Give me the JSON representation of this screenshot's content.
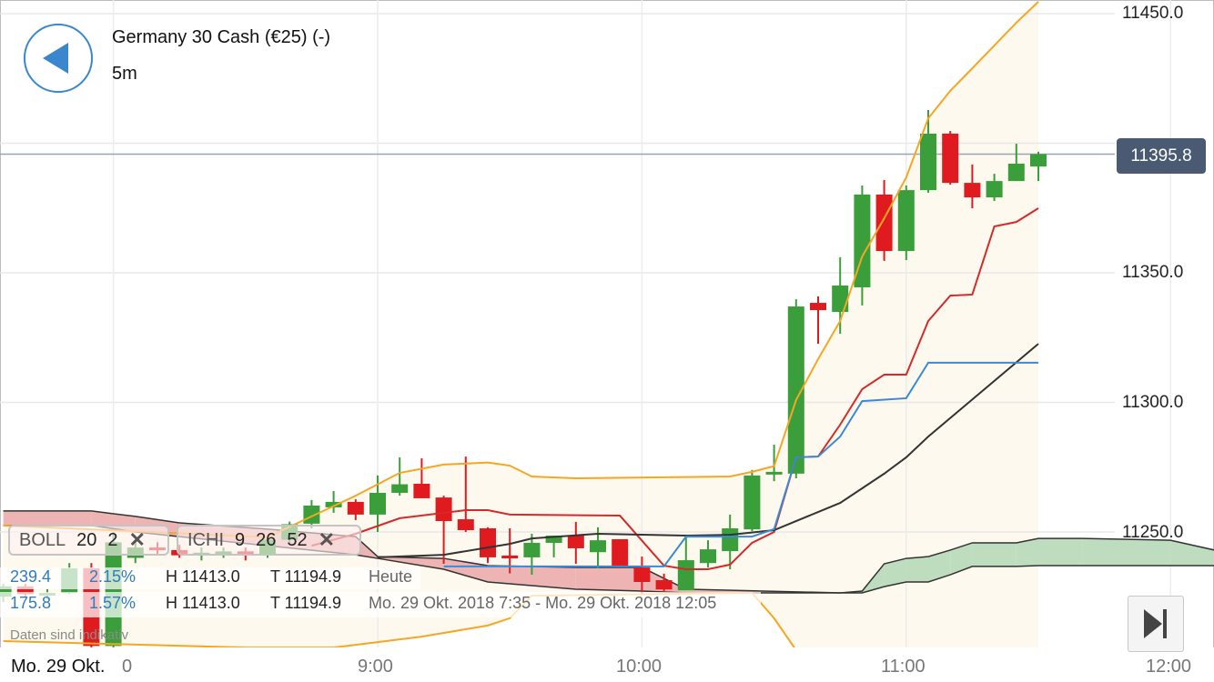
{
  "header": {
    "title": "Germany 30 Cash (€25) (-)",
    "interval": "5m",
    "back_icon": "back-triangle-icon"
  },
  "indicators": [
    {
      "name": "BOLL",
      "params": [
        "20",
        "2"
      ],
      "remove": "✕"
    },
    {
      "name": "ICHI",
      "params": [
        "9",
        "26",
        "52"
      ],
      "remove": "✕"
    }
  ],
  "stats": [
    {
      "change": "239.4",
      "pct": "2.15%",
      "high": "H 11413.0",
      "low": "T 11194.9",
      "period": "Heute"
    },
    {
      "change": "175.8",
      "pct": "1.57%",
      "high": "H 11413.0",
      "low": "T 11194.9",
      "period": "Mo. 29 Okt. 2018 7:35 - Mo. 29 Okt. 2018 12:05"
    }
  ],
  "disclaimer": "Daten sind indikativ",
  "last_price": "11395.8",
  "x_axis": {
    "date_label": "Mo. 29 Okt.",
    "partial_label": "0",
    "ticks": [
      "9:00",
      "10:00",
      "11:00",
      "12:00"
    ]
  },
  "y_axis": {
    "ticks": [
      "11450.0",
      "11350.0",
      "11300.0",
      "11250.0"
    ]
  },
  "colors": {
    "up": "#3a9e3a",
    "down": "#e01b1f",
    "boll_band": "#f5a623",
    "boll_mid": "#d42a2a",
    "tenkan": "#3a8ad6",
    "kijun": "#333333",
    "cloud_bull": "#bedcbe",
    "cloud_bear": "#eeb4b4",
    "last_price": "#4a5a72",
    "accent": "#3a87d0"
  },
  "chart_data": {
    "type": "candlestick",
    "instrument": "Germany 30 Cash (€25) (-)",
    "interval": "5m",
    "ylim": [
      11195,
      11455
    ],
    "xlim": [
      "7:35",
      "12:10"
    ],
    "grid": true,
    "last_price": 11395.8,
    "candles": [
      [
        "7:35",
        11225,
        11230,
        11223,
        11229
      ],
      [
        "7:40",
        11229,
        11230,
        11225,
        11226
      ],
      [
        "7:45",
        11226,
        11228,
        11224,
        11226.5
      ],
      [
        "7:50",
        11226.5,
        11238,
        11226,
        11236
      ],
      [
        "7:55",
        11236,
        11238,
        11205,
        11206
      ],
      [
        "8:00",
        11206,
        11250,
        11205,
        11246
      ],
      [
        "8:05",
        11240,
        11247,
        11238,
        11244
      ],
      [
        "8:10",
        11244,
        11246,
        11241,
        11243
      ],
      [
        "8:15",
        11243,
        11245,
        11240,
        11241
      ],
      [
        "8:20",
        11241,
        11244,
        11239,
        11242
      ],
      [
        "8:25",
        11242,
        11244,
        11240,
        11242.5
      ],
      [
        "8:30",
        11242.5,
        11244,
        11239,
        11241
      ],
      [
        "8:35",
        11241,
        11248,
        11240,
        11247
      ],
      [
        "8:40",
        11247,
        11254,
        11246,
        11253
      ],
      [
        "8:45",
        11253.2,
        11262.3,
        11251.4,
        11260.2
      ],
      [
        "8:50",
        11259.5,
        11265.8,
        11257.4,
        11261.6
      ],
      [
        "8:55",
        11261.6,
        11262.6,
        11254.6,
        11256.7
      ],
      [
        "9:00",
        11256.7,
        11271.8,
        11250.0,
        11265.1
      ],
      [
        "9:05",
        11265.1,
        11278.8,
        11264.0,
        11268.4
      ],
      [
        "9:10",
        11268.6,
        11278.4,
        11263.0,
        11263.0
      ],
      [
        "9:15",
        11263.3,
        11264.0,
        11237.7,
        11254.2
      ],
      [
        "9:20",
        11254.9,
        11279.1,
        11250.0,
        11250.7
      ],
      [
        "9:25",
        11251.4,
        11251.8,
        11238.0,
        11240.2
      ],
      [
        "9:30",
        11240.9,
        11251.4,
        11234.0,
        11239.8
      ],
      [
        "9:35",
        11240.2,
        11249.3,
        11233.5,
        11245.8
      ],
      [
        "9:40",
        11245.8,
        11248.6,
        11240.2,
        11248.6
      ],
      [
        "9:45",
        11248.6,
        11253.9,
        11237.7,
        11243.7
      ],
      [
        "9:50",
        11242.2,
        11251.8,
        11236.0,
        11246.8
      ],
      [
        "9:55",
        11247.2,
        11247.2,
        11236.0,
        11236.7
      ],
      [
        "10:00",
        11236.3,
        11240.5,
        11226.0,
        11230.7
      ],
      [
        "10:05",
        11231.4,
        11233.9,
        11227.2,
        11227.8
      ],
      [
        "10:10",
        11227.5,
        11249.0,
        11227.5,
        11239.1
      ],
      [
        "10:15",
        11238.0,
        11246.8,
        11236.3,
        11243.3
      ],
      [
        "10:20",
        11242.6,
        11256.7,
        11235.6,
        11251.4
      ],
      [
        "10:25",
        11251.0,
        11273.9,
        11250.3,
        11271.8
      ],
      [
        "10:30",
        11272.5,
        11283.7,
        11269.6,
        11273.2
      ],
      [
        "10:35",
        11272.5,
        11339.8,
        11270.7,
        11337.0
      ],
      [
        "10:40",
        11338.4,
        11340.9,
        11322.6,
        11335.6
      ],
      [
        "10:45",
        11334.9,
        11356.0,
        11326.5,
        11345.1
      ],
      [
        "10:50",
        11344.4,
        11383.7,
        11337.4,
        11380.2
      ],
      [
        "10:55",
        11380.2,
        11385.8,
        11354.6,
        11358.4
      ],
      [
        "11:00",
        11358.4,
        11383.7,
        11354.9,
        11381.9
      ],
      [
        "11:05",
        11381.9,
        11412.8,
        11380.9,
        11403.7
      ],
      [
        "11:10",
        11403.7,
        11404.7,
        11384.0,
        11384.7
      ],
      [
        "11:15",
        11384.7,
        11391.8,
        11374.9,
        11379.1
      ],
      [
        "11:20",
        11379.1,
        11388.2,
        11377.7,
        11385.4
      ],
      [
        "11:25",
        11385.4,
        11399.8,
        11385.4,
        11392.1
      ],
      [
        "11:30",
        11391.0,
        11396.7,
        11385.4,
        11395.8
      ]
    ],
    "bollinger_upper": [
      [
        "7:35",
        11252.5
      ],
      [
        "8:35",
        11248
      ],
      [
        "8:45",
        11256.0
      ],
      [
        "8:55",
        11264.0
      ],
      [
        "9:05",
        11272.8
      ],
      [
        "9:15",
        11276.0
      ],
      [
        "9:25",
        11276.8
      ],
      [
        "9:30",
        11275.6
      ],
      [
        "9:35",
        11271.4
      ],
      [
        "9:45",
        11270.7
      ],
      [
        "10:00",
        11271.0
      ],
      [
        "10:20",
        11271.4
      ],
      [
        "10:25",
        11273.2
      ],
      [
        "10:30",
        11275.4
      ],
      [
        "10:35",
        11300.9
      ],
      [
        "10:40",
        11316.7
      ],
      [
        "10:45",
        11331.4
      ],
      [
        "10:50",
        11356.3
      ],
      [
        "10:55",
        11371.0
      ],
      [
        "11:00",
        11386.8
      ],
      [
        "11:05",
        11409.6
      ],
      [
        "11:10",
        11420.2
      ],
      [
        "11:15",
        11428.9
      ],
      [
        "11:20",
        11437.7
      ],
      [
        "11:25",
        11446.5
      ],
      [
        "11:30",
        11454.6
      ]
    ],
    "bollinger_middle": [
      [
        "8:45",
        11244.7
      ],
      [
        "8:55",
        11249.3
      ],
      [
        "9:05",
        11255.3
      ],
      [
        "9:20",
        11258.4
      ],
      [
        "9:25",
        11258.4
      ],
      [
        "9:30",
        11256.7
      ],
      [
        "9:55",
        11256.3
      ],
      [
        "10:05",
        11237.0
      ],
      [
        "10:10",
        11235.6
      ],
      [
        "10:15",
        11235.6
      ],
      [
        "10:20",
        11237.4
      ],
      [
        "10:25",
        11245.8
      ],
      [
        "10:30",
        11250.0
      ],
      [
        "10:35",
        11278.8
      ],
      [
        "10:40",
        11279.1
      ],
      [
        "10:45",
        11291.4
      ],
      [
        "10:50",
        11305.1
      ],
      [
        "10:55",
        11310.7
      ],
      [
        "11:00",
        11310.7
      ],
      [
        "11:05",
        11331.4
      ],
      [
        "11:10",
        11341.2
      ],
      [
        "11:15",
        11341.6
      ],
      [
        "11:20",
        11367.9
      ],
      [
        "11:25",
        11369.6
      ],
      [
        "11:30",
        11374.9
      ]
    ],
    "bollinger_lower": [
      [
        "7:35",
        11207.9
      ],
      [
        "8:30",
        11205.4
      ],
      [
        "8:50",
        11205.4
      ],
      [
        "9:10",
        11209.6
      ],
      [
        "9:25",
        11213.9
      ],
      [
        "9:30",
        11216.7
      ],
      [
        "9:35",
        11225.4
      ],
      [
        "10:25",
        11226.5
      ],
      [
        "10:30",
        11216.7
      ],
      [
        "10:35",
        11204.4
      ],
      [
        "10:40",
        11195
      ]
    ],
    "ichimoku_tenkan": [
      [
        "9:15",
        11236.7
      ],
      [
        "10:05",
        11236.7
      ],
      [
        "10:10",
        11248.2
      ],
      [
        "10:25",
        11248.2
      ],
      [
        "10:30",
        11251.1
      ],
      [
        "10:35",
        11278.8
      ],
      [
        "10:40",
        11279.1
      ],
      [
        "10:45",
        11286.8
      ],
      [
        "10:50",
        11300.5
      ],
      [
        "11:00",
        11301.6
      ],
      [
        "11:05",
        11315.3
      ],
      [
        "11:30",
        11315.3
      ]
    ],
    "ichimoku_kijun": [
      [
        "9:00",
        11240.2
      ],
      [
        "9:15",
        11241.2
      ],
      [
        "9:30",
        11245.4
      ],
      [
        "9:35",
        11247.5
      ],
      [
        "9:50",
        11249.3
      ],
      [
        "10:10",
        11248.6
      ],
      [
        "10:20",
        11248.9
      ],
      [
        "10:30",
        11250.7
      ],
      [
        "10:45",
        11261.2
      ],
      [
        "10:55",
        11272.5
      ],
      [
        "11:00",
        11278.8
      ],
      [
        "11:05",
        11286.8
      ],
      [
        "11:30",
        11322.6
      ]
    ],
    "ichimoku_cloud": [
      [
        "7:35",
        11252.5,
        11258.1
      ],
      [
        "7:55",
        11252.5,
        11258.1
      ],
      [
        "8:05",
        11250.0,
        11256.0
      ],
      [
        "8:15",
        11248.2,
        11253.5
      ],
      [
        "8:35",
        11244.7,
        11251.1
      ],
      [
        "8:55",
        11241.2,
        11248.2
      ],
      [
        "9:00",
        11239.8,
        11240.5
      ],
      [
        "9:15",
        11235.6,
        11239.8
      ],
      [
        "9:25",
        11230.7,
        11237.0
      ],
      [
        "9:45",
        11227.9,
        11236.3
      ],
      [
        "10:00",
        11227.2,
        11236.3
      ],
      [
        "10:10",
        11226.5,
        11227.9
      ],
      [
        "10:45",
        11226.5,
        11226.5
      ],
      [
        "10:50",
        11227.2,
        11226.5
      ],
      [
        "10:55",
        11237.7,
        11228.9
      ],
      [
        "11:00",
        11239.8,
        11230.7
      ],
      [
        "11:05",
        11240.5,
        11230.7
      ],
      [
        "11:10",
        11243.0,
        11233.5
      ],
      [
        "11:15",
        11245.8,
        11236.7
      ],
      [
        "11:25",
        11245.8,
        11236.7
      ],
      [
        "11:30",
        11247.5,
        11237.0
      ],
      [
        "11:40",
        11247.5,
        11237.0
      ],
      [
        "12:00",
        11246.8,
        11237.0
      ],
      [
        "12:10",
        11243.0,
        11237.0
      ]
    ]
  }
}
